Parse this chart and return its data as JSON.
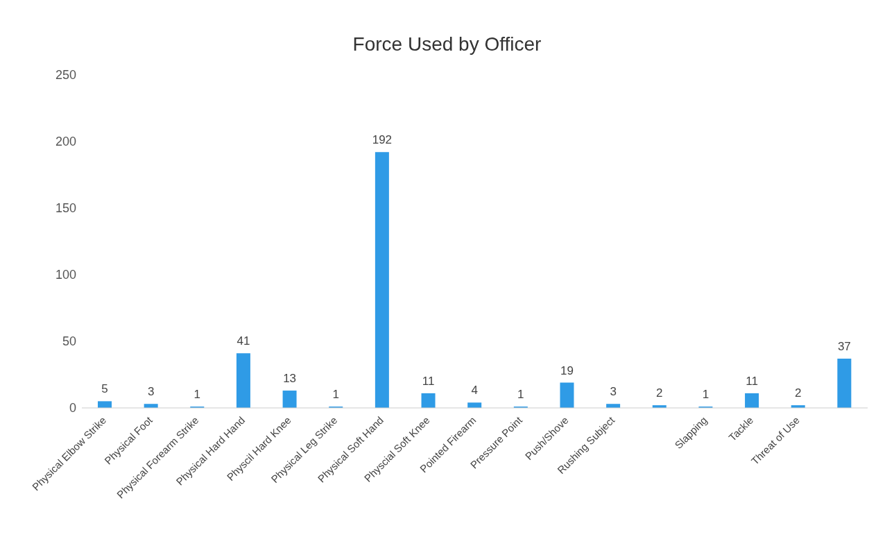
{
  "chart_data": {
    "type": "bar",
    "title": "Force Used by Officer",
    "categories": [
      "Physical Elbow Strike",
      "Physical  Foot",
      "Physical Forearm Strike",
      "Physical Hard Hand",
      "Physcil Hard Knee",
      "Physical Leg Strike",
      "Physical Soft Hand",
      "Physcial Soft Knee",
      "Pointed Firearm",
      "Pressure Point",
      "Push/Shove",
      "Rushing Subject",
      null,
      "Slapping",
      "Tackle",
      "Threat of Use",
      null
    ],
    "values": [
      5,
      3,
      1,
      41,
      13,
      1,
      192,
      11,
      4,
      1,
      19,
      3,
      2,
      1,
      11,
      2,
      37
    ],
    "color": "#2f9be6",
    "ylim": [
      0,
      250
    ],
    "yticks": [
      0,
      50,
      100,
      150,
      200,
      250
    ],
    "grid": false,
    "data_labels": true
  }
}
